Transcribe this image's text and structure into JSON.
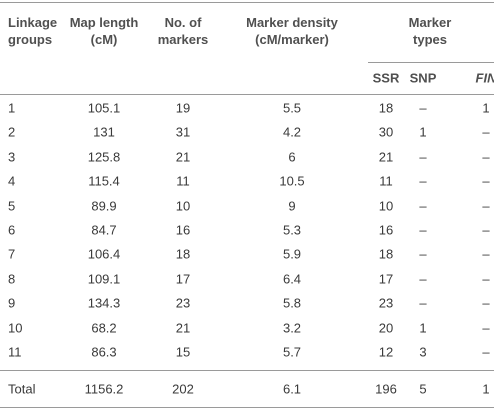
{
  "table": {
    "header": [
      "Linkage groups",
      "Map length (cM)",
      "No. of markers",
      "Marker density (cM/marker)",
      "Marker types"
    ],
    "subheader": [
      "SSR",
      "SNP",
      "FIN"
    ],
    "rows": [
      [
        "1",
        "105.1",
        "19",
        "5.5",
        "18",
        "–",
        "1"
      ],
      [
        "2",
        "131",
        "31",
        "4.2",
        "30",
        "1",
        "–"
      ],
      [
        "3",
        "125.8",
        "21",
        "6",
        "21",
        "–",
        "–"
      ],
      [
        "4",
        "115.4",
        "11",
        "10.5",
        "11",
        "–",
        "–"
      ],
      [
        "5",
        "89.9",
        "10",
        "9",
        "10",
        "–",
        "–"
      ],
      [
        "6",
        "84.7",
        "16",
        "5.3",
        "16",
        "–",
        "–"
      ],
      [
        "7",
        "106.4",
        "18",
        "5.9",
        "18",
        "–",
        "–"
      ],
      [
        "8",
        "109.1",
        "17",
        "6.4",
        "17",
        "–",
        "–"
      ],
      [
        "9",
        "134.3",
        "23",
        "5.8",
        "23",
        "–",
        "–"
      ],
      [
        "10",
        "68.2",
        "21",
        "3.2",
        "20",
        "1",
        "–"
      ],
      [
        "11",
        "86.3",
        "15",
        "5.7",
        "12",
        "3",
        "–"
      ]
    ],
    "total": [
      "Total",
      "1156.2",
      "202",
      "6.1",
      "196",
      "5",
      "1"
    ]
  }
}
